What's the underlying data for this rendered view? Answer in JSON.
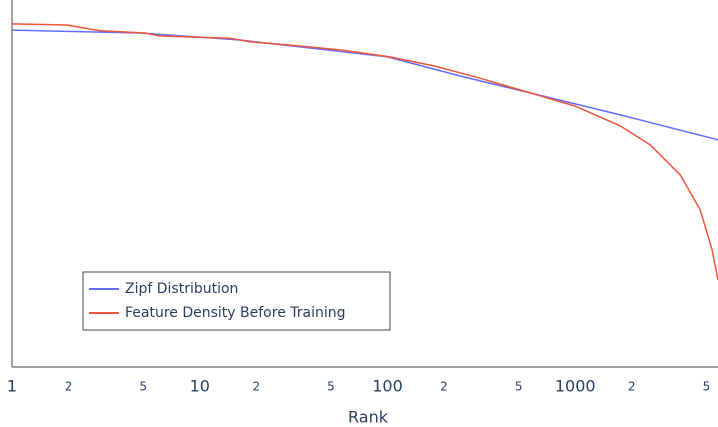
{
  "chart_data": {
    "type": "line",
    "xlabel": "Rank",
    "xscale": "log",
    "xlim": [
      1,
      5760
    ],
    "ylim": [
      0,
      100
    ],
    "xticks": [
      1,
      2,
      5,
      10,
      {
        "value": 20,
        "label": "2"
      },
      {
        "value": 50,
        "label": "5"
      },
      100,
      {
        "value": 200,
        "label": "2"
      },
      {
        "value": 500,
        "label": "5"
      },
      1000,
      {
        "value": 2000,
        "label": "2"
      },
      {
        "value": 5000,
        "label": "5"
      }
    ],
    "legend": "bottom-left",
    "series": [
      {
        "name": "Zipf Distribution",
        "color": "#636efa",
        "x": [
          1,
          4.81,
          16.4,
          100,
          244,
          575,
          1738,
          5760
        ],
        "values": [
          91.8,
          91.0,
          89.1,
          84.5,
          79.3,
          74.7,
          68.7,
          61.9
        ]
      },
      {
        "name": "Feature Density Before Training",
        "color": "#ef553b",
        "x": [
          1,
          1.96,
          2.94,
          5.11,
          6.14,
          14.5,
          18.5,
          30.3,
          55.9,
          103,
          179,
          311,
          575,
          1000,
          1738,
          2510,
          3630,
          4630,
          5360,
          5760
        ],
        "values": [
          93.5,
          93.2,
          91.6,
          91.0,
          90.2,
          89.6,
          88.6,
          87.7,
          86.4,
          84.5,
          82.0,
          78.7,
          74.7,
          71.1,
          65.7,
          60.5,
          52.3,
          42.8,
          31.9,
          23.7
        ]
      }
    ]
  }
}
